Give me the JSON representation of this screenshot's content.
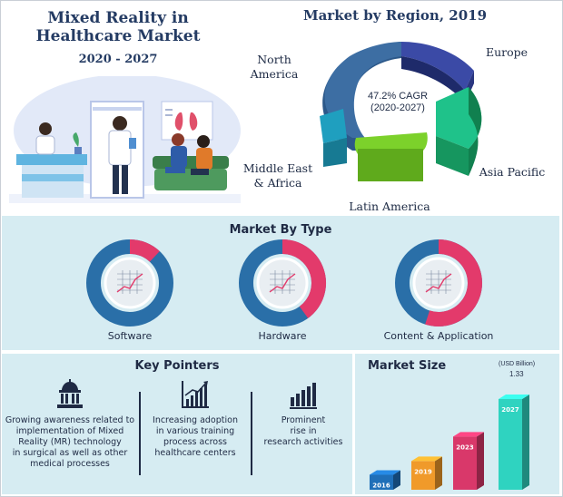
{
  "header": {
    "title_line1": "Mixed Reality in",
    "title_line2": "Healthcare Market",
    "years": "2020 - 2027"
  },
  "region": {
    "title": "Market by Region, 2019",
    "cagr_line1": "47.2% CAGR",
    "cagr_line2": "(2020-2027)",
    "labels": {
      "north_america_1": "North",
      "north_america_2": "America",
      "europe": "Europe",
      "asia_pacific": "Asia Pacific",
      "latin_america": "Latin America",
      "middle_east_1": "Middle East",
      "middle_east_2": "& Africa"
    },
    "colors": {
      "north_america": "#3d6ea3",
      "europe": "#3b4aa6",
      "asia_pacific": "#1fc28a",
      "latin_america": "#7cd12b",
      "middle_east": "#1f9fbf"
    }
  },
  "market_by_type": {
    "title": "Market By Type",
    "items": [
      {
        "label": "Software",
        "share": 0.12
      },
      {
        "label": "Hardware",
        "share": 0.4
      },
      {
        "label": "Content & Application",
        "share": 0.55
      }
    ],
    "colors": {
      "base": "#2a6fa8",
      "highlight": "#e33a6b"
    }
  },
  "key_pointers": {
    "title": "Key Pointers",
    "items": [
      {
        "icon": "capitol-icon",
        "lines": [
          "Growing awareness related to",
          "implementation of Mixed",
          "Reality (MR) technology",
          "in surgical as well as other",
          "medical processes"
        ]
      },
      {
        "icon": "chart-growth-icon",
        "lines": [
          "Increasing adoption",
          "in various training",
          "process across",
          "healthcare centers"
        ]
      },
      {
        "icon": "bar-chart-icon",
        "lines": [
          "Prominent",
          "rise in",
          "research activities"
        ]
      }
    ]
  },
  "market_size": {
    "title": "Market Size",
    "unit": "(USD Billion)",
    "value_label": "1.33"
  },
  "chart_data": {
    "type": "bar",
    "categories": [
      "2016",
      "2019",
      "2023",
      "2027"
    ],
    "values": [
      0.22,
      0.42,
      0.78,
      1.33
    ],
    "colors": [
      "#1f6fb8",
      "#f09a2a",
      "#d9386a",
      "#2fd3c0"
    ],
    "ylabel": "(USD Billion)"
  }
}
